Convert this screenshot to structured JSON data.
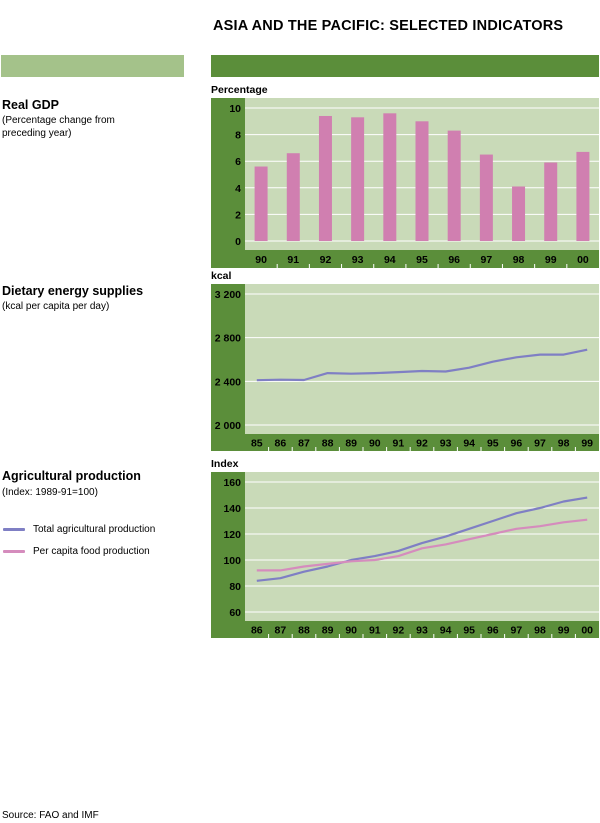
{
  "page_title": "ASIA AND THE PACIFIC: SELECTED INDICATORS",
  "source": "Source: FAO and IMF",
  "colors": {
    "header_light_green": "#a4c28a",
    "header_dark_green": "#5b8e3a",
    "plot_background": "#c9dab8",
    "axis_green": "#5b8e3a",
    "bar_pink": "#d07fb0",
    "line_blue": "#7f7fc4",
    "line_pink": "#d58cbd"
  },
  "sections": {
    "gdp": {
      "title": "Real GDP",
      "subtitle": "(Percentage change from preceding year)"
    },
    "des": {
      "title": "Dietary energy supplies",
      "subtitle": "(kcal per capita per day)"
    },
    "agr": {
      "title": "Agricultural production",
      "subtitle": "(Index: 1989-91=100)",
      "legend": [
        "Total agricultural production",
        "Per capita food production"
      ]
    }
  },
  "chart_data": [
    {
      "type": "bar",
      "unit_label": "Percentage",
      "categories": [
        "90",
        "91",
        "92",
        "93",
        "94",
        "95",
        "96",
        "97",
        "98",
        "99",
        "00"
      ],
      "values": [
        5.6,
        6.6,
        9.4,
        9.3,
        9.6,
        9.0,
        8.3,
        6.5,
        4.1,
        5.9,
        6.7
      ],
      "ylim": [
        0,
        10
      ],
      "yticks": [
        "0",
        "2",
        "4",
        "6",
        "8",
        "10"
      ],
      "ytick_values": [
        0,
        2,
        4,
        6,
        8,
        10
      ],
      "grid": true
    },
    {
      "type": "line",
      "unit_label": "kcal",
      "x": [
        "85",
        "86",
        "87",
        "88",
        "89",
        "90",
        "91",
        "92",
        "93",
        "94",
        "95",
        "96",
        "97",
        "98",
        "99"
      ],
      "series": [
        {
          "values": [
            2410,
            2415,
            2412,
            2475,
            2470,
            2475,
            2485,
            2495,
            2490,
            2525,
            2580,
            2620,
            2645,
            2645,
            2690
          ]
        }
      ],
      "ylim": [
        2000,
        3200
      ],
      "yticks": [
        "2 000",
        "2 400",
        "2 800",
        "3 200"
      ],
      "ytick_values": [
        2000,
        2400,
        2800,
        3200
      ],
      "grid": true
    },
    {
      "type": "line",
      "unit_label": "Index",
      "x": [
        "86",
        "87",
        "88",
        "89",
        "90",
        "91",
        "92",
        "93",
        "94",
        "95",
        "96",
        "97",
        "98",
        "99",
        "00"
      ],
      "series": [
        {
          "name": "Total agricultural production",
          "values": [
            84,
            86,
            91,
            95,
            100,
            103,
            107,
            113,
            118,
            124,
            130,
            136,
            140,
            145,
            148
          ]
        },
        {
          "name": "Per capita food production",
          "values": [
            92,
            92,
            95,
            97,
            99,
            100,
            103,
            109,
            112,
            116,
            120,
            124,
            126,
            129,
            131
          ]
        }
      ],
      "ylim": [
        60,
        160
      ],
      "yticks": [
        "60",
        "80",
        "100",
        "120",
        "140",
        "160"
      ],
      "ytick_values": [
        60,
        80,
        100,
        120,
        140,
        160
      ],
      "legend_position": "left",
      "grid": true
    }
  ]
}
